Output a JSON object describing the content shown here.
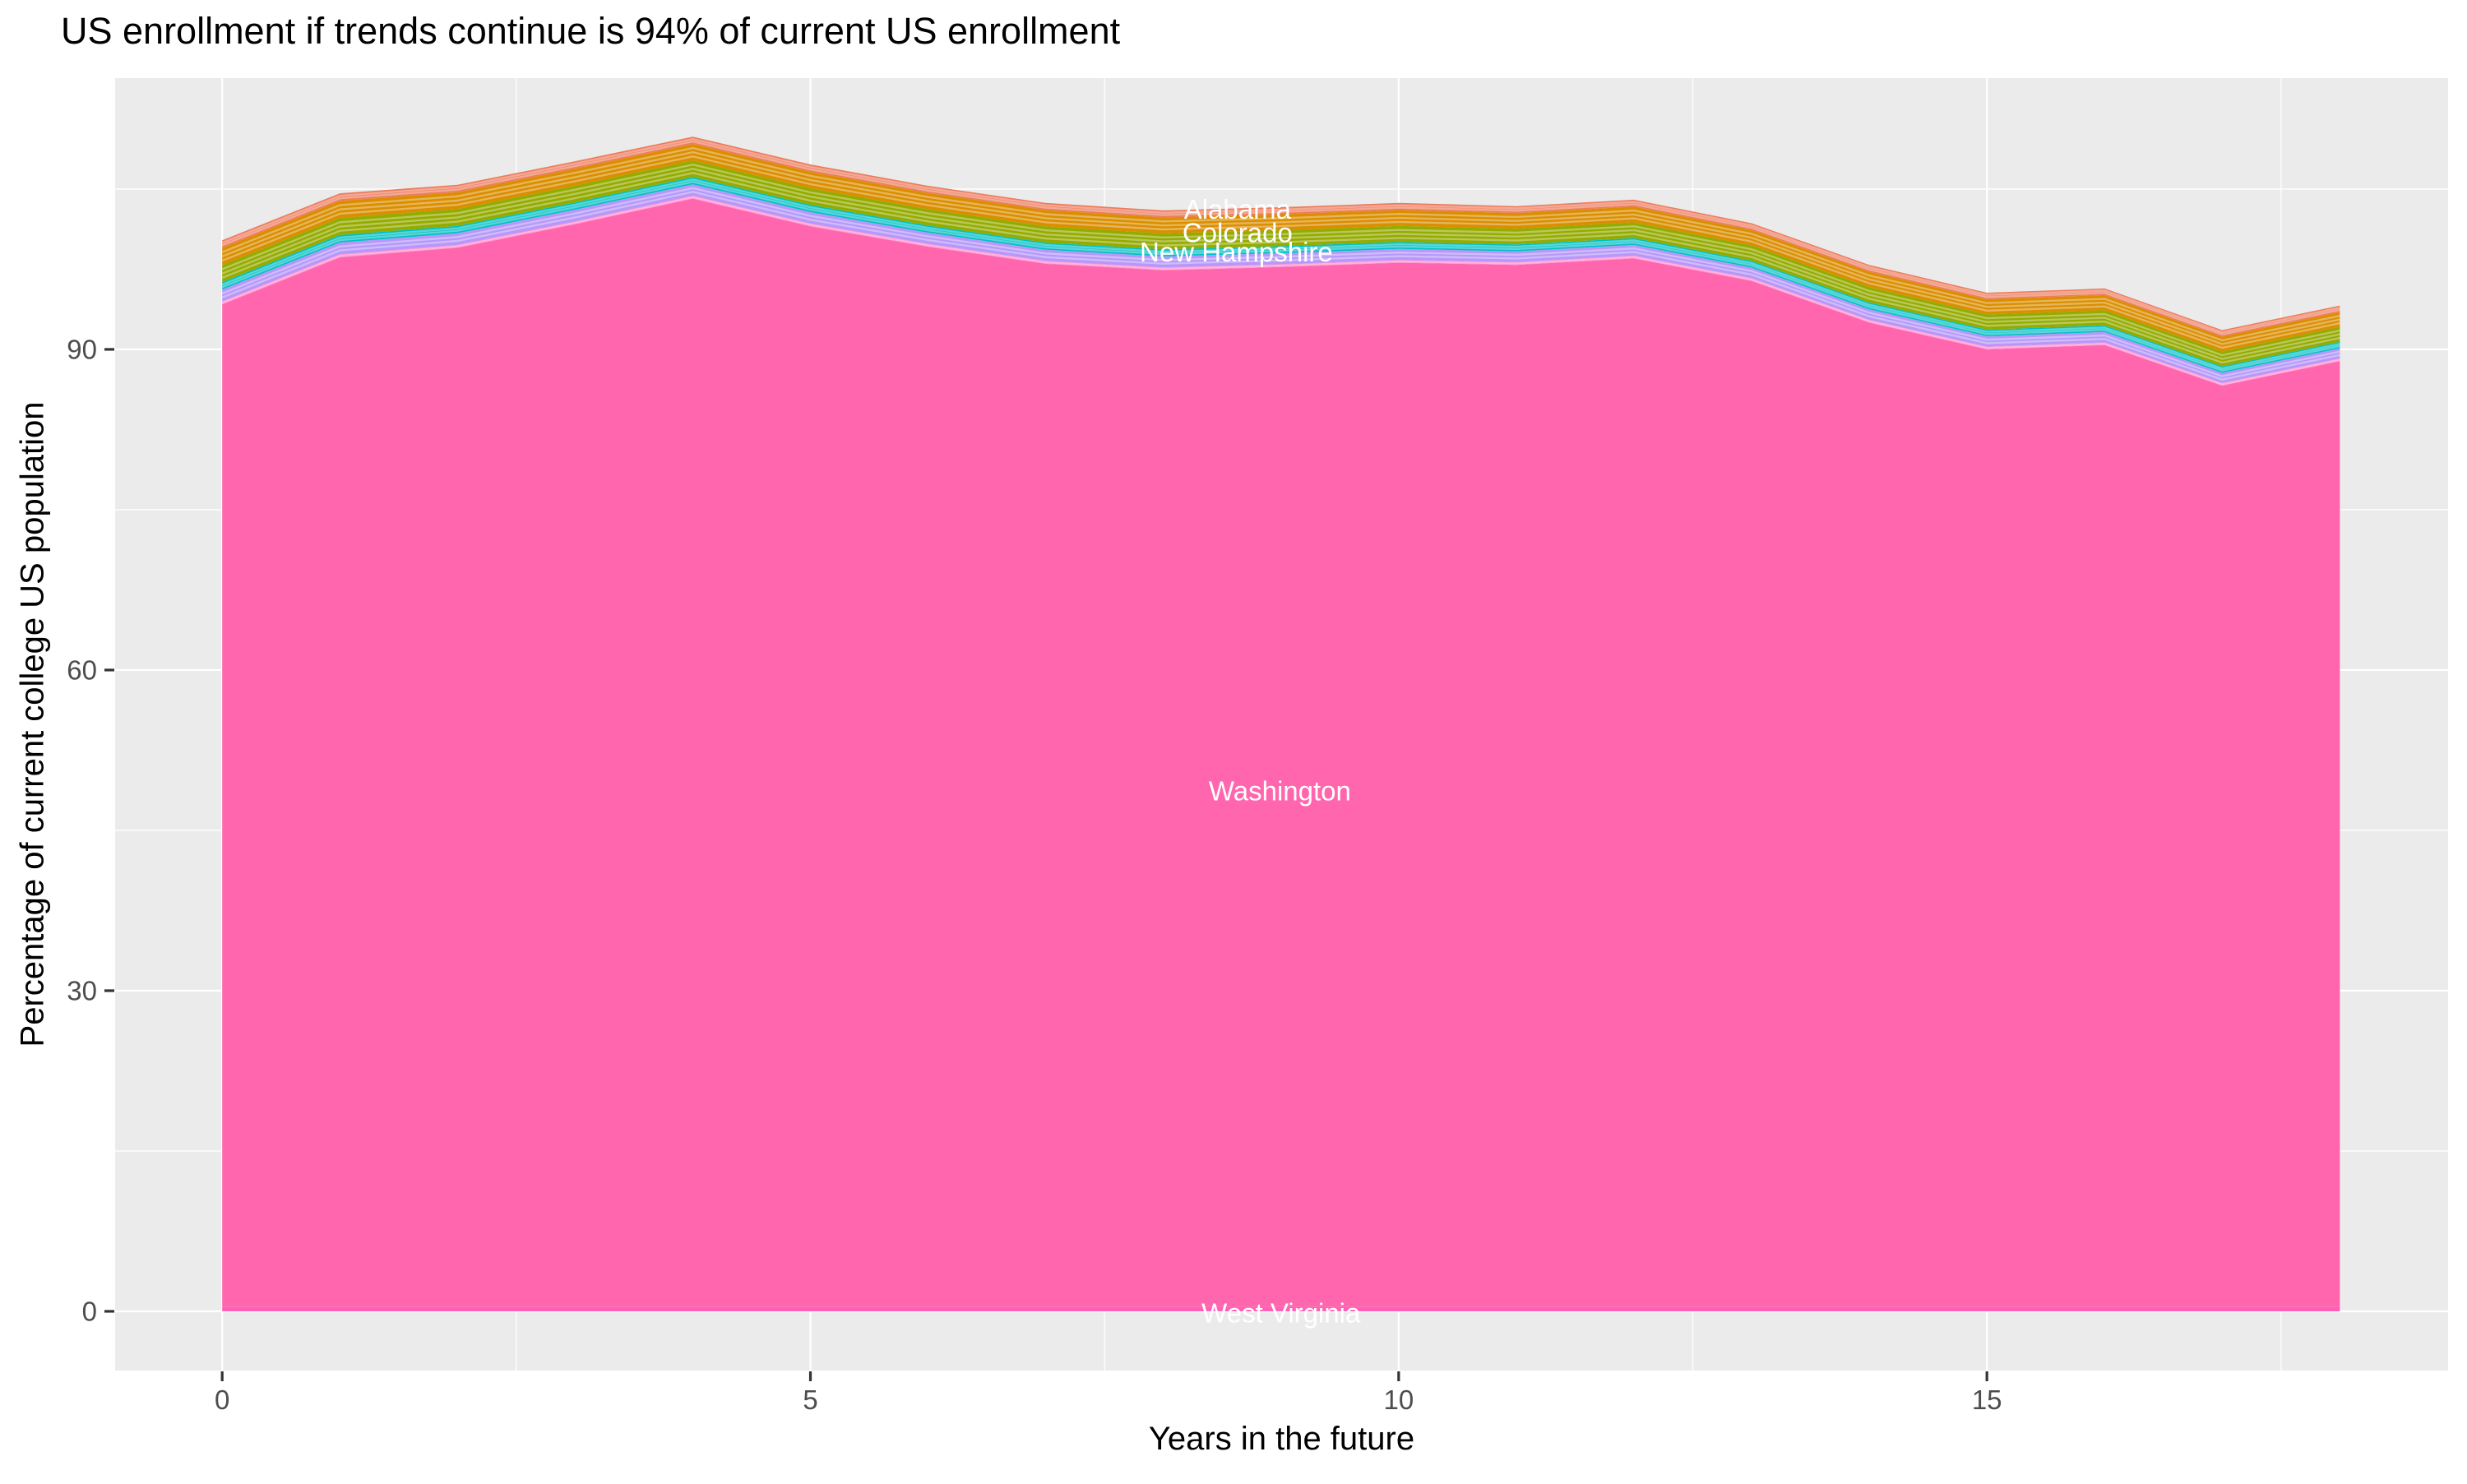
{
  "title": "US enrollment if trends continue is 94% of current US enrollment",
  "chart_data": {
    "type": "area",
    "stacked": true,
    "title": "US enrollment if trends continue is 94% of current US enrollment",
    "xlabel": "Years in the future",
    "ylabel": "Percentage of current college US population",
    "x": [
      0,
      1,
      2,
      3,
      4,
      5,
      6,
      7,
      8,
      9,
      10,
      11,
      12,
      13,
      14,
      15,
      16,
      17,
      18
    ],
    "total_top": [
      100.2,
      104.6,
      105.4,
      107.6,
      109.9,
      107.3,
      105.3,
      103.7,
      103.0,
      103.3,
      103.7,
      103.4,
      104.0,
      101.8,
      97.9,
      95.3,
      95.7,
      91.8,
      94.1
    ],
    "washington_top": [
      94.2,
      98.6,
      99.5,
      101.7,
      104.1,
      101.5,
      99.6,
      98.0,
      97.4,
      97.7,
      98.1,
      97.9,
      98.5,
      96.4,
      92.5,
      90.0,
      90.4,
      86.6,
      88.9
    ],
    "west_virginia_top": 0.4,
    "xticks": [
      0,
      5,
      10,
      15
    ],
    "yticks": [
      0,
      30,
      60,
      90
    ],
    "xminor": [
      2.5,
      7.5,
      12.5,
      17.5
    ],
    "yminor": [
      15,
      45,
      75,
      105
    ],
    "xlim": [
      -0.91,
      18.92
    ],
    "ylim": [
      -5.54,
      115.38
    ],
    "grid": true,
    "legend": "none",
    "colors": {
      "background": "#EBEBEB",
      "grid": "#FFFFFF",
      "washington": "#FF66AD",
      "west_virginia": "#FF5FB7",
      "tick_text": "#4D4D4D",
      "tick_mark": "#333333",
      "separator": "rgba(255,255,255,0.35)",
      "label_text": "#FFFFFF"
    },
    "top_bands": [
      {
        "name": "pink-sliver-states",
        "color": "#FF87CE",
        "frac": 0.049,
        "seps": 1
      },
      {
        "name": "new-hampshire-band",
        "color": "#B598FA",
        "frac": 0.183,
        "seps": 2
      },
      {
        "name": "cyan-states-band",
        "color": "#00C0C4",
        "frac": 0.117,
        "seps": 2
      },
      {
        "name": "olive-states-band",
        "color": "#94AB00",
        "frac": 0.267,
        "seps": 3
      },
      {
        "name": "orange-states-band",
        "color": "#DA8E00",
        "frac": 0.267,
        "seps": 3
      },
      {
        "name": "salmon-states-band",
        "color": "#EE7C5C",
        "frac": 0.117,
        "seps": 2
      }
    ],
    "area_labels": [
      {
        "text": "Alabama",
        "year": 8.63,
        "value": 103.1
      },
      {
        "text": "Colorado",
        "year": 8.63,
        "value": 100.9
      },
      {
        "text": "New Hampshire",
        "year": 8.62,
        "value": 99.1
      },
      {
        "text": "Washington",
        "year": 8.99,
        "value": 48.7
      },
      {
        "text": "West Virginia",
        "year": 9.0,
        "value": -0.15
      }
    ]
  }
}
